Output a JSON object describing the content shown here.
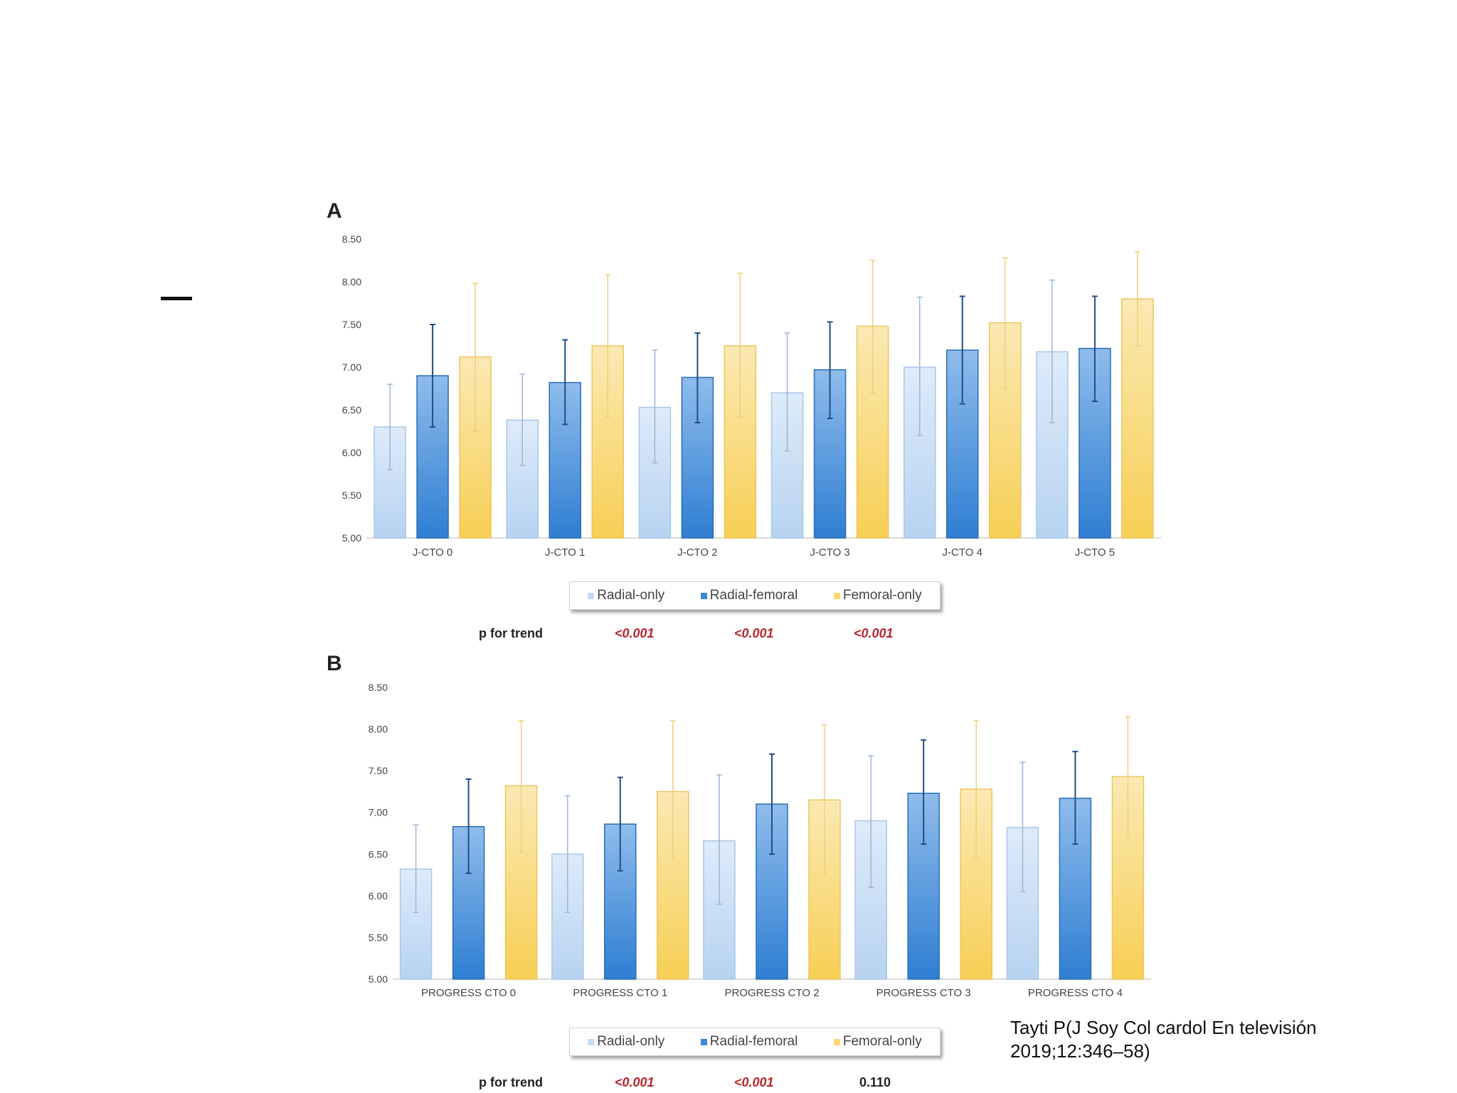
{
  "chart_data": [
    {
      "type": "bar",
      "panel": "A",
      "categories": [
        "J-CTO 0",
        "J-CTO 1",
        "J-CTO 2",
        "J-CTO 3",
        "J-CTO 4",
        "J-CTO 5"
      ],
      "series": [
        {
          "name": "Radial-only",
          "values": [
            6.3,
            6.38,
            6.53,
            6.7,
            7.0,
            7.18
          ],
          "err_low": [
            5.8,
            5.85,
            5.88,
            6.02,
            6.2,
            6.35
          ],
          "err_high": [
            6.8,
            6.92,
            7.2,
            7.4,
            7.82,
            8.02
          ]
        },
        {
          "name": "Radial-femoral",
          "values": [
            6.9,
            6.82,
            6.88,
            6.97,
            7.2,
            7.22
          ],
          "err_low": [
            6.3,
            6.33,
            6.35,
            6.4,
            6.57,
            6.6
          ],
          "err_high": [
            7.5,
            7.32,
            7.4,
            7.53,
            7.83,
            7.83
          ]
        },
        {
          "name": "Femoral-only",
          "values": [
            7.12,
            7.25,
            7.25,
            7.48,
            7.52,
            7.8
          ],
          "err_low": [
            6.25,
            6.42,
            6.42,
            6.7,
            6.75,
            7.25
          ],
          "err_high": [
            7.98,
            8.08,
            8.1,
            8.25,
            8.28,
            8.35
          ]
        }
      ],
      "ylim": [
        5.0,
        8.5
      ],
      "yticks": [
        "5.00",
        "5.50",
        "6.00",
        "6.50",
        "7.00",
        "7.50",
        "8.00",
        "8.50"
      ],
      "legend": "bottom",
      "p_for_trend": {
        "label": "p for trend",
        "values": [
          "<0.001",
          "<0.001",
          "<0.001"
        ],
        "significant": [
          true,
          true,
          true
        ]
      }
    },
    {
      "type": "bar",
      "panel": "B",
      "categories": [
        "PROGRESS CTO 0",
        "PROGRESS CTO 1",
        "PROGRESS CTO 2",
        "PROGRESS CTO 3",
        "PROGRESS CTO 4"
      ],
      "series": [
        {
          "name": "Radial-only",
          "values": [
            6.32,
            6.5,
            6.66,
            6.9,
            6.82
          ],
          "err_low": [
            5.8,
            5.8,
            5.9,
            6.1,
            6.05
          ],
          "err_high": [
            6.85,
            7.2,
            7.45,
            7.68,
            7.6
          ]
        },
        {
          "name": "Radial-femoral",
          "values": [
            6.83,
            6.86,
            7.1,
            7.23,
            7.17
          ],
          "err_low": [
            6.27,
            6.3,
            6.5,
            6.62,
            6.62
          ],
          "err_high": [
            7.4,
            7.42,
            7.7,
            7.87,
            7.73
          ]
        },
        {
          "name": "Femoral-only",
          "values": [
            7.32,
            7.25,
            7.15,
            7.28,
            7.43
          ],
          "err_low": [
            6.52,
            6.43,
            6.25,
            6.45,
            6.7
          ],
          "err_high": [
            8.1,
            8.1,
            8.05,
            8.1,
            8.15
          ]
        }
      ],
      "ylim": [
        5.0,
        8.5
      ],
      "yticks": [
        "5.00",
        "5.50",
        "6.00",
        "6.50",
        "7.00",
        "7.50",
        "8.00",
        "8.50"
      ],
      "legend": "bottom",
      "p_for_trend": {
        "label": "p for trend",
        "values": [
          "<0.001",
          "<0.001",
          "0.110"
        ],
        "significant": [
          true,
          true,
          false
        ]
      }
    }
  ],
  "panels": {
    "a_label": "A",
    "b_label": "B"
  },
  "colors": {
    "radial_only": "#c6dcf3",
    "radial_femoral": "#3f8ad6",
    "femoral_only": "#f9d776",
    "significant_p": "#b8262d"
  },
  "citation": {
    "line1": "Tayti P(J Soy Col cardol En televisión",
    "line2": "2019;12:346–58)"
  }
}
